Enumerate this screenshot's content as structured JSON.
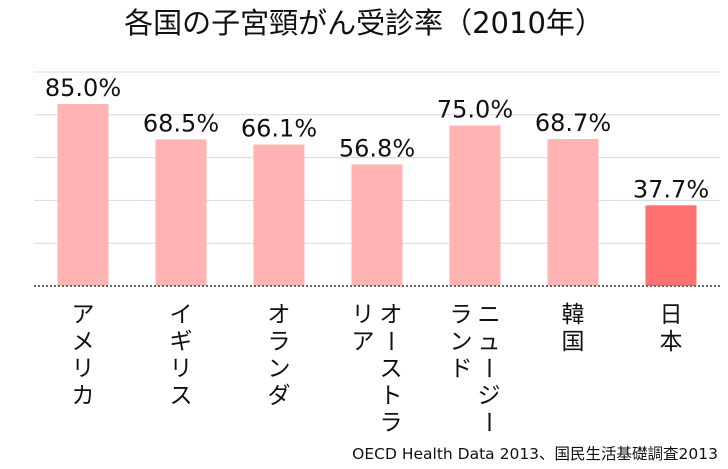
{
  "chart_data": {
    "type": "bar",
    "title": "各国の子宮頸がん受診率（2010年）",
    "categories": [
      "アメリカ",
      "イギリス",
      "オランダ",
      "オーストラリア",
      "ニュージーランド",
      "韓国",
      "日本"
    ],
    "category_lines": [
      [
        "アメリカ"
      ],
      [
        "イギリス"
      ],
      [
        "オランダ"
      ],
      [
        "オーストラ",
        "リア"
      ],
      [
        "ニュージー",
        "ランド"
      ],
      [
        "韓国"
      ],
      [
        "日本"
      ]
    ],
    "values": [
      85.0,
      68.5,
      66.1,
      56.8,
      75.0,
      68.7,
      37.7
    ],
    "value_labels": [
      "85.0%",
      "68.5%",
      "66.1%",
      "56.8%",
      "75.0%",
      "68.7%",
      "37.7%"
    ],
    "ylim": [
      0,
      100
    ],
    "grid": true,
    "colors": {
      "bar": "#ffb3b3",
      "highlight_bar": "#ff7070",
      "highlight_category": "日本",
      "grid": "#d9d9d9",
      "baseline": "#666666"
    },
    "source": "OECD Health Data 2013、国民生活基礎調査2013"
  }
}
